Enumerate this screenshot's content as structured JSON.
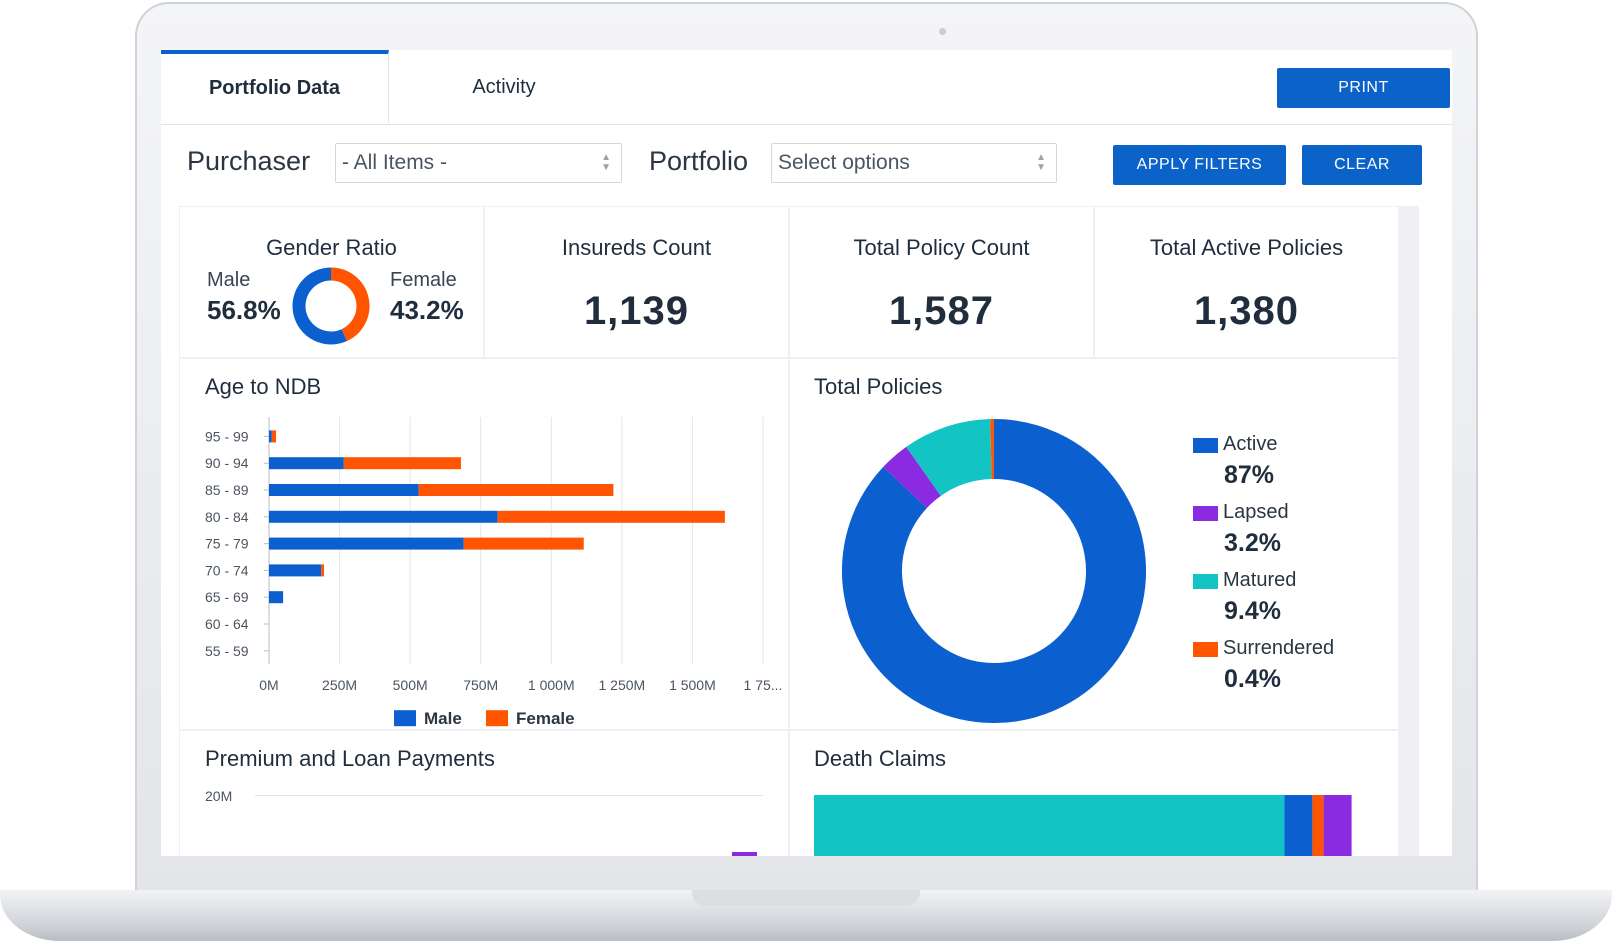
{
  "tabs": [
    {
      "label": "Portfolio Data",
      "active": true
    },
    {
      "label": "Activity",
      "active": false
    }
  ],
  "print_label": "PRINT",
  "filters": {
    "purchaser_label": "Purchaser",
    "purchaser_value": "- All Items -",
    "portfolio_label": "Portfolio",
    "portfolio_placeholder": "Select options",
    "apply_label": "APPLY FILTERS",
    "clear_label": "CLEAR"
  },
  "stats": {
    "gender": {
      "title": "Gender Ratio",
      "male_label": "Male",
      "male_value": "56.8%",
      "female_label": "Female",
      "female_value": "43.2%"
    },
    "insureds": {
      "title": "Insureds Count",
      "value": "1,139"
    },
    "policy_count": {
      "title": "Total Policy Count",
      "value": "1,587"
    },
    "active": {
      "title": "Total Active Policies",
      "value": "1,380"
    }
  },
  "cards": {
    "age": "Age to NDB",
    "total_policies": "Total Policies",
    "premium": "Premium and Loan Payments",
    "death": "Death Claims",
    "premium_tick": "20M"
  },
  "colors": {
    "blue": "#0b5fcf",
    "orange": "#ff5500",
    "purple": "#8a2be2",
    "teal": "#12c4c4",
    "accent": "#0b63c9"
  },
  "chart_data": [
    {
      "type": "donut",
      "title": "Gender Ratio",
      "categories": [
        "Male",
        "Female"
      ],
      "values": [
        56.8,
        43.2
      ]
    },
    {
      "type": "bar",
      "orientation": "horizontal",
      "stacked": true,
      "title": "Age to NDB",
      "categories": [
        "95 - 99",
        "90 - 94",
        "85 - 89",
        "80 - 84",
        "75 - 79",
        "70 - 74",
        "65 - 69",
        "60 - 64",
        "55 - 59"
      ],
      "series": [
        {
          "name": "Male",
          "values": [
            10,
            265,
            530,
            810,
            690,
            185,
            50,
            0,
            0
          ]
        },
        {
          "name": "Female",
          "values": [
            15,
            415,
            690,
            805,
            425,
            10,
            0,
            0,
            0
          ]
        }
      ],
      "xticks": [
        "0M",
        "250M",
        "500M",
        "750M",
        "1 000M",
        "1 250M",
        "1 500M",
        "1 75..."
      ],
      "xlim": [
        0,
        1750
      ],
      "legend": "bottom"
    },
    {
      "type": "pie",
      "title": "Total Policies",
      "categories": [
        "Active",
        "Lapsed",
        "Matured",
        "Surrendered"
      ],
      "values": [
        87,
        3.2,
        9.4,
        0.4
      ],
      "labels": [
        "87%",
        "3.2%",
        "9.4%",
        "0.4%"
      ],
      "legend": "right"
    },
    {
      "type": "bar",
      "orientation": "horizontal",
      "stacked": true,
      "title": "Death Claims",
      "categories": [
        ""
      ],
      "series": [
        {
          "name": "teal",
          "values": [
            84
          ]
        },
        {
          "name": "blue",
          "values": [
            5
          ]
        },
        {
          "name": "orange",
          "values": [
            2
          ]
        },
        {
          "name": "purple",
          "values": [
            5
          ]
        }
      ]
    }
  ]
}
